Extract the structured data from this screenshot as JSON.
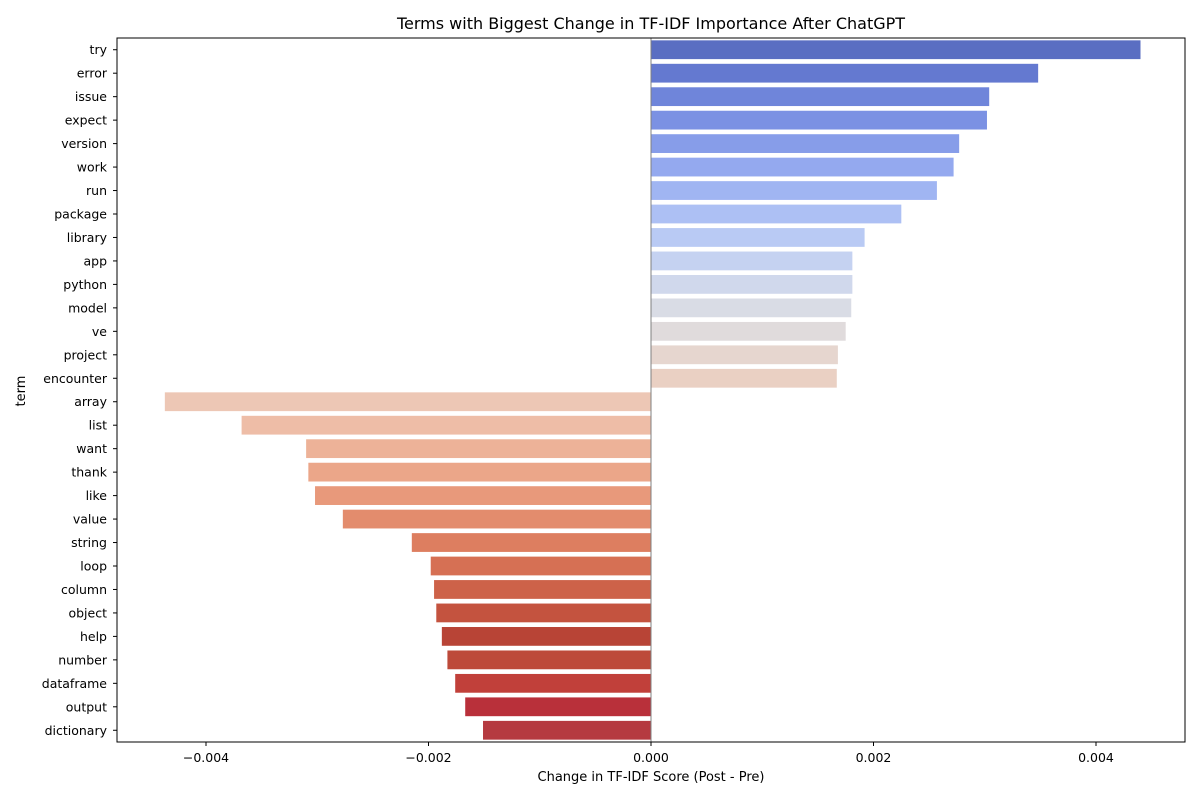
{
  "chart_data": {
    "type": "bar",
    "orientation": "horizontal",
    "title": "Terms with Biggest Change in TF-IDF Importance After ChatGPT",
    "xlabel": "Change in TF-IDF Score (Post - Pre)",
    "ylabel": "term",
    "xlim": [
      -0.0048,
      0.0048
    ],
    "xticks": [
      -0.004,
      -0.002,
      0.0,
      0.002,
      0.004
    ],
    "xtick_labels": [
      "−0.004",
      "−0.002",
      "0.000",
      "0.002",
      "0.004"
    ],
    "grid": false,
    "legend": "none",
    "colormap": "coolwarm",
    "categories": [
      "try",
      "error",
      "issue",
      "expect",
      "version",
      "work",
      "run",
      "package",
      "library",
      "app",
      "python",
      "model",
      "ve",
      "project",
      "encounter",
      "array",
      "list",
      "want",
      "thank",
      "like",
      "value",
      "string",
      "loop",
      "column",
      "object",
      "help",
      "number",
      "dataframe",
      "output",
      "dictionary"
    ],
    "values": [
      0.0044,
      0.00348,
      0.00304,
      0.00302,
      0.00277,
      0.00272,
      0.00257,
      0.00225,
      0.00192,
      0.00181,
      0.00181,
      0.0018,
      0.00175,
      0.00168,
      0.00167,
      -0.00437,
      -0.00368,
      -0.0031,
      -0.00308,
      -0.00302,
      -0.00277,
      -0.00215,
      -0.00198,
      -0.00195,
      -0.00193,
      -0.00188,
      -0.00183,
      -0.00176,
      -0.00167,
      -0.00151
    ],
    "colors": [
      "#5a6ec2",
      "#6479d0",
      "#6f85da",
      "#7b91e3",
      "#879de9",
      "#94a9ef",
      "#a0b5f2",
      "#adc0f4",
      "#b9caf4",
      "#c5d2f1",
      "#d0d8ec",
      "#d9dce5",
      "#e0dbdc",
      "#e6d6cf",
      "#ead0c3",
      "#edc7b5",
      "#eebda7",
      "#edb298",
      "#eba689",
      "#e8997b",
      "#e38c6d",
      "#dd7e60",
      "#d67054",
      "#cd6249",
      "#c4533f",
      "#b84436",
      "#bd4a3a",
      "#c1403a",
      "#b9303a",
      "#b53a40"
    ]
  }
}
